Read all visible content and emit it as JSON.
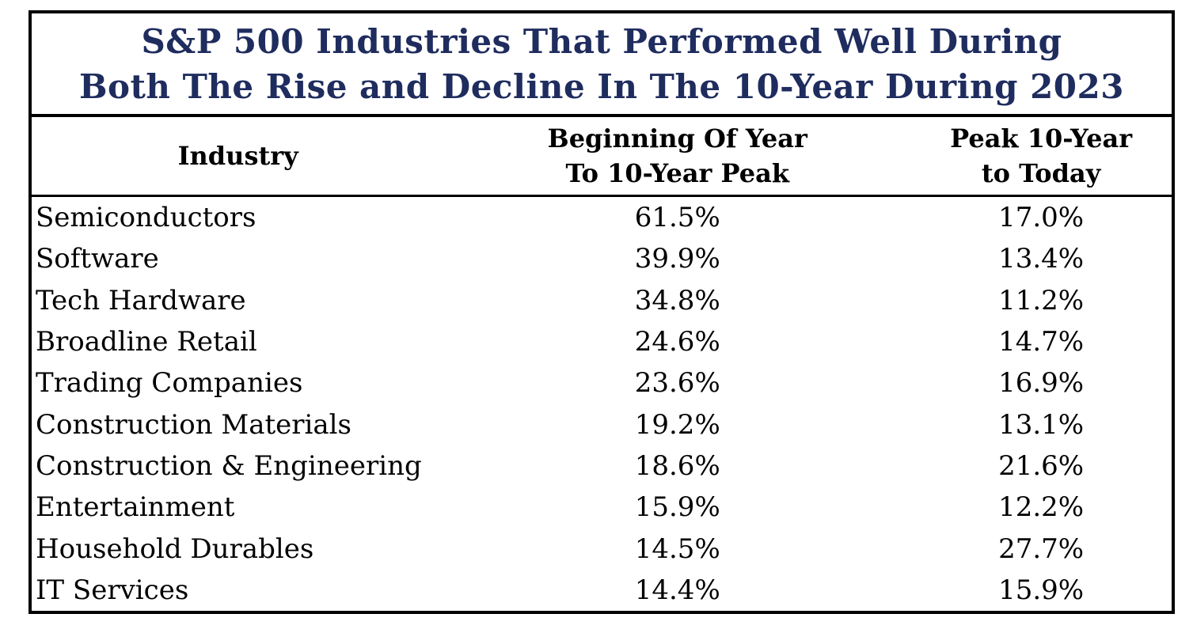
{
  "table": {
    "title_line1": "S&P 500 Industries That Performed Well During",
    "title_line2": "Both The Rise and Decline In The 10-Year During 2023",
    "header": {
      "industry": "Industry",
      "col2_line1": "Beginning Of Year",
      "col2_line2": "To 10-Year Peak",
      "col3_line1": "Peak 10-Year",
      "col3_line2": "to Today"
    },
    "rows": [
      {
        "industry": "Semiconductors",
        "beginning_to_peak": "61.5%",
        "peak_to_today": "17.0%"
      },
      {
        "industry": "Software",
        "beginning_to_peak": "39.9%",
        "peak_to_today": "13.4%"
      },
      {
        "industry": "Tech Hardware",
        "beginning_to_peak": "34.8%",
        "peak_to_today": "11.2%"
      },
      {
        "industry": "Broadline Retail",
        "beginning_to_peak": "24.6%",
        "peak_to_today": "14.7%"
      },
      {
        "industry": "Trading Companies",
        "beginning_to_peak": "23.6%",
        "peak_to_today": "16.9%"
      },
      {
        "industry": "Construction Materials",
        "beginning_to_peak": "19.2%",
        "peak_to_today": "13.1%"
      },
      {
        "industry": "Construction & Engineering",
        "beginning_to_peak": "18.6%",
        "peak_to_today": "21.6%"
      },
      {
        "industry": "Entertainment",
        "beginning_to_peak": "15.9%",
        "peak_to_today": "12.2%"
      },
      {
        "industry": "Household Durables",
        "beginning_to_peak": "14.5%",
        "peak_to_today": "27.7%"
      },
      {
        "industry": "IT Services",
        "beginning_to_peak": "14.4%",
        "peak_to_today": "15.9%"
      }
    ]
  },
  "colors": {
    "title_text": "#1F2C5E",
    "border": "#000000",
    "background": "#FFFFFF"
  },
  "chart_data": {
    "type": "table",
    "title": "S&P 500 Industries That Performed Well During Both The Rise and Decline In The 10-Year During 2023",
    "columns": [
      "Industry",
      "Beginning Of Year To 10-Year Peak",
      "Peak 10-Year to Today"
    ],
    "rows": [
      [
        "Semiconductors",
        "61.5%",
        "17.0%"
      ],
      [
        "Software",
        "39.9%",
        "13.4%"
      ],
      [
        "Tech Hardware",
        "34.8%",
        "11.2%"
      ],
      [
        "Broadline Retail",
        "24.6%",
        "14.7%"
      ],
      [
        "Trading Companies",
        "23.6%",
        "16.9%"
      ],
      [
        "Construction Materials",
        "19.2%",
        "13.1%"
      ],
      [
        "Construction & Engineering",
        "18.6%",
        "21.6%"
      ],
      [
        "Entertainment",
        "15.9%",
        "12.2%"
      ],
      [
        "Household Durables",
        "14.5%",
        "27.7%"
      ],
      [
        "IT Services",
        "14.4%",
        "15.9%"
      ]
    ],
    "series": [
      {
        "name": "Beginning Of Year To 10-Year Peak",
        "values": [
          61.5,
          39.9,
          34.8,
          24.6,
          23.6,
          19.2,
          18.6,
          15.9,
          14.5,
          14.4
        ]
      },
      {
        "name": "Peak 10-Year to Today",
        "values": [
          17.0,
          13.4,
          11.2,
          14.7,
          16.9,
          13.1,
          21.6,
          12.2,
          27.7,
          15.9
        ]
      }
    ],
    "categories": [
      "Semiconductors",
      "Software",
      "Tech Hardware",
      "Broadline Retail",
      "Trading Companies",
      "Construction Materials",
      "Construction & Engineering",
      "Entertainment",
      "Household Durables",
      "IT Services"
    ]
  }
}
